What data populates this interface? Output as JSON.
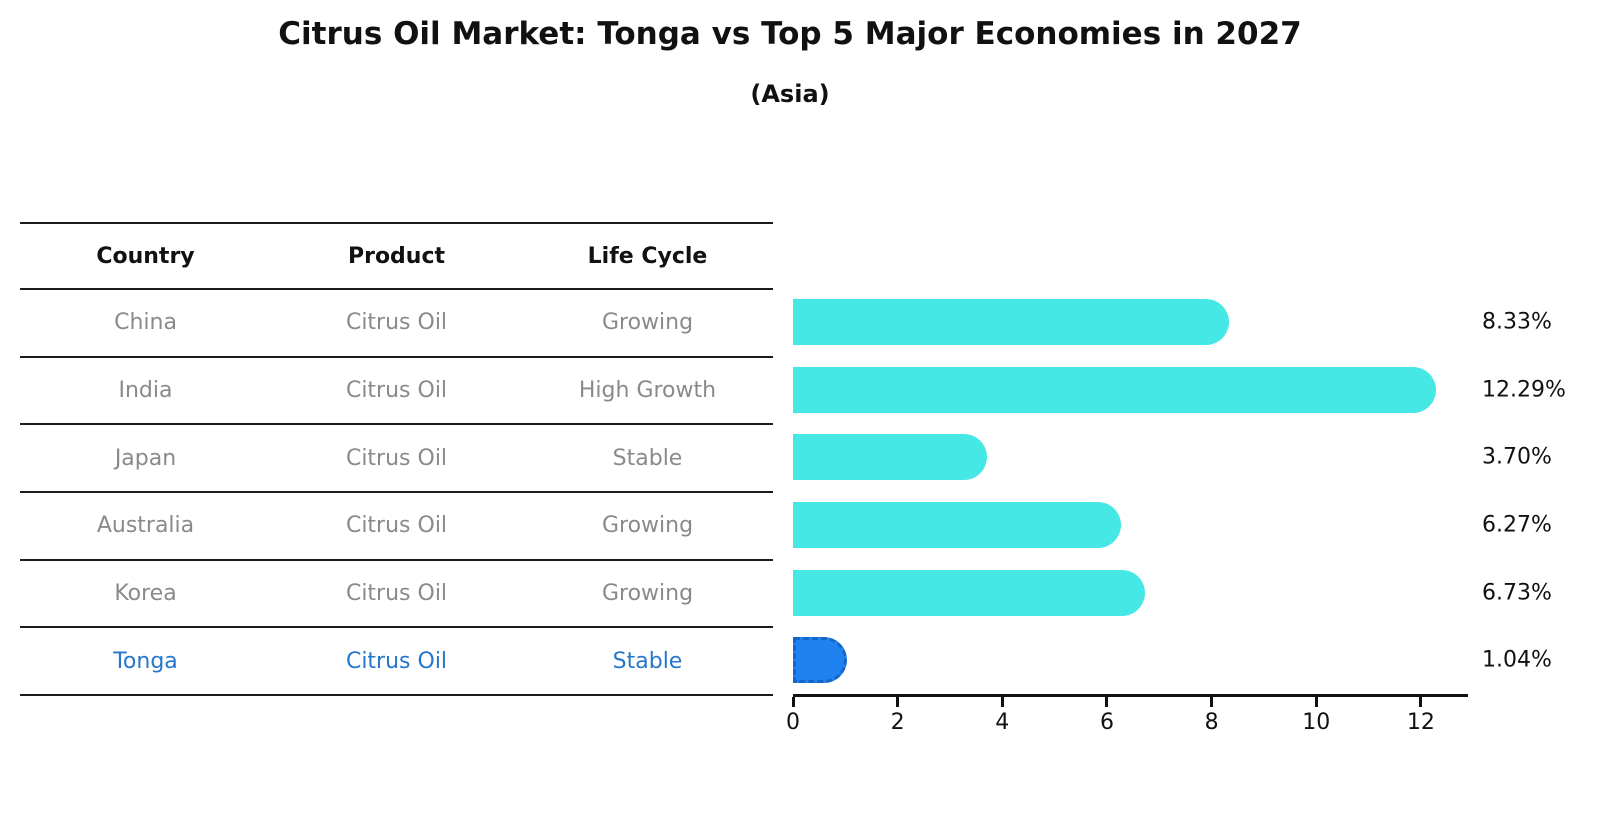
{
  "title": "Citrus Oil Market: Tonga vs Top 5 Major Economies in 2027",
  "subtitle": "(Asia)",
  "table": {
    "headers": [
      "Country",
      "Product",
      "Life Cycle"
    ],
    "rows": [
      {
        "country": "China",
        "product": "Citrus Oil",
        "life_cycle": "Growing"
      },
      {
        "country": "India",
        "product": "Citrus Oil",
        "life_cycle": "High Growth"
      },
      {
        "country": "Japan",
        "product": "Citrus Oil",
        "life_cycle": "Stable"
      },
      {
        "country": "Australia",
        "product": "Citrus Oil",
        "life_cycle": "Growing"
      },
      {
        "country": "Korea",
        "product": "Citrus Oil",
        "life_cycle": "Growing"
      },
      {
        "country": "Tonga",
        "product": "Citrus Oil",
        "life_cycle": "Stable"
      }
    ],
    "highlighted_row": "Tonga"
  },
  "chart_data": {
    "type": "bar",
    "orientation": "horizontal",
    "title": "Citrus Oil Market: Tonga vs Top 5 Major Economies in 2027",
    "subtitle": "(Asia)",
    "categories": [
      "China",
      "India",
      "Japan",
      "Australia",
      "Korea",
      "Tonga"
    ],
    "values": [
      8.33,
      12.29,
      3.7,
      6.27,
      6.73,
      1.04
    ],
    "value_labels": [
      "8.33%",
      "12.29%",
      "3.70%",
      "6.27%",
      "6.73%",
      "1.04%"
    ],
    "xlabel": "",
    "ylabel": "",
    "xlim": [
      0,
      12.9
    ],
    "xticks": [
      0,
      2,
      4,
      6,
      8,
      10,
      12
    ],
    "grid": false,
    "legend": false,
    "bar_color": "#45e8e4",
    "highlight_index": 5,
    "highlight_color": "#1e82f0",
    "highlight_border_color": "#1465c8"
  },
  "colors": {
    "background": "#ffffff",
    "text_primary": "#111111",
    "text_muted": "#8a8a8a",
    "highlight_text": "#2677cc",
    "table_line": "#1c1c1c",
    "axis": "#111111"
  }
}
